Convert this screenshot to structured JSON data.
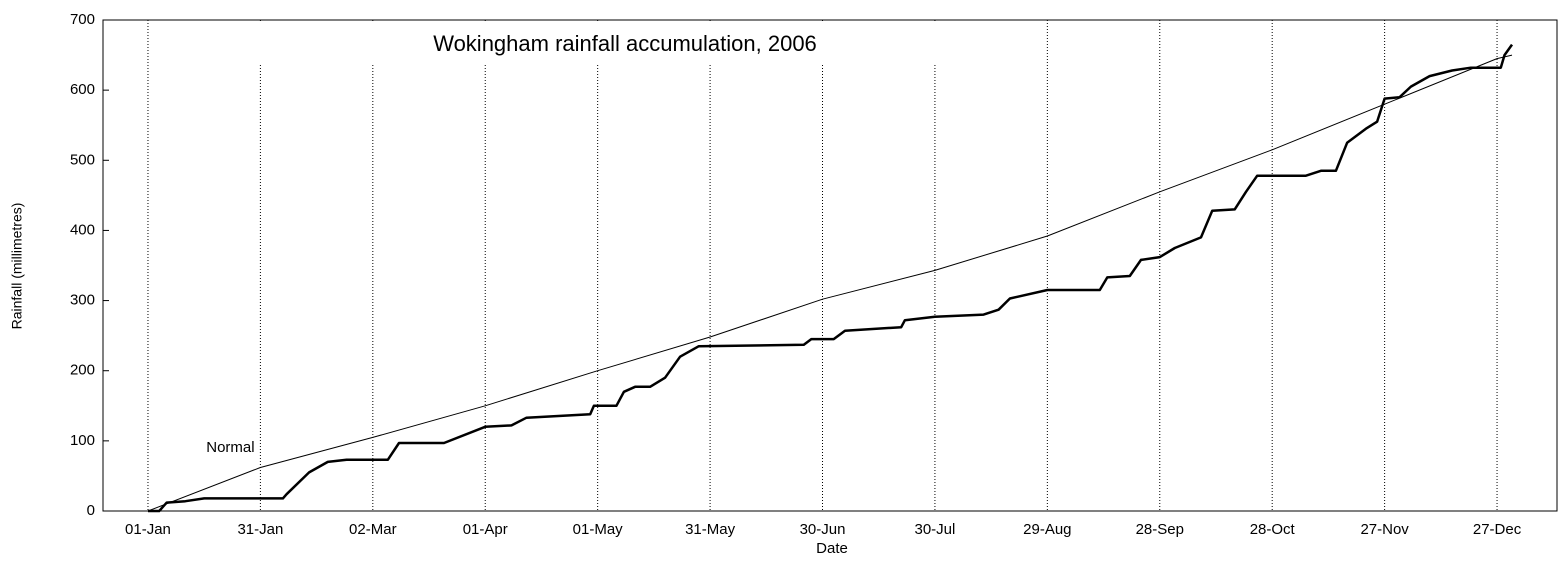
{
  "chart_data": {
    "type": "line",
    "title": "Wokingham rainfall accumulation, 2006",
    "x_label": "Date",
    "y_label": "Rainfall (millimetres)",
    "annotation": "Normal",
    "xlim": [
      -12,
      376
    ],
    "ylim": [
      0,
      700
    ],
    "xticks": [
      {
        "value": 0,
        "label": "01-Jan"
      },
      {
        "value": 30,
        "label": "31-Jan"
      },
      {
        "value": 60,
        "label": "02-Mar"
      },
      {
        "value": 90,
        "label": "01-Apr"
      },
      {
        "value": 120,
        "label": "01-May"
      },
      {
        "value": 150,
        "label": "31-May"
      },
      {
        "value": 180,
        "label": "30-Jun"
      },
      {
        "value": 210,
        "label": "30-Jul"
      },
      {
        "value": 240,
        "label": "29-Aug"
      },
      {
        "value": 270,
        "label": "28-Sep"
      },
      {
        "value": 300,
        "label": "28-Oct"
      },
      {
        "value": 330,
        "label": "27-Nov"
      },
      {
        "value": 360,
        "label": "27-Dec"
      }
    ],
    "yticks": [
      0,
      100,
      200,
      300,
      400,
      500,
      600,
      700
    ],
    "grid": true,
    "series": [
      {
        "color": "#000000",
        "x": [
          0,
          30,
          60,
          90,
          120,
          150,
          180,
          210,
          240,
          270,
          300,
          330,
          360,
          364
        ],
        "values": [
          0,
          62,
          105,
          150,
          200,
          248,
          302,
          343,
          392,
          455,
          515,
          580,
          645,
          650
        ]
      },
      {
        "color": "#000000",
        "x": [
          0,
          3,
          5,
          10,
          15,
          36,
          37,
          43,
          48,
          53,
          64,
          67,
          79,
          90,
          97,
          101,
          118,
          119,
          125,
          127,
          130,
          134,
          138,
          142,
          147,
          175,
          177,
          183,
          186,
          201,
          202,
          210,
          223,
          227,
          230,
          240,
          254,
          256,
          262,
          265,
          270,
          274,
          281,
          284,
          290,
          293,
          296,
          309,
          313,
          317,
          320,
          325,
          328,
          330,
          334,
          337,
          342,
          348,
          353,
          361,
          362,
          364
        ],
        "values": [
          0,
          0,
          12,
          14,
          18,
          18,
          24,
          55,
          70,
          73,
          73,
          97,
          97,
          120,
          122,
          133,
          138,
          150,
          150,
          170,
          177,
          177,
          190,
          220,
          235,
          237,
          245,
          245,
          257,
          262,
          272,
          277,
          280,
          287,
          303,
          315,
          315,
          333,
          335,
          358,
          362,
          375,
          390,
          428,
          430,
          455,
          478,
          478,
          485,
          485,
          525,
          545,
          555,
          588,
          590,
          605,
          620,
          628,
          632,
          632,
          650,
          665
        ]
      }
    ]
  }
}
